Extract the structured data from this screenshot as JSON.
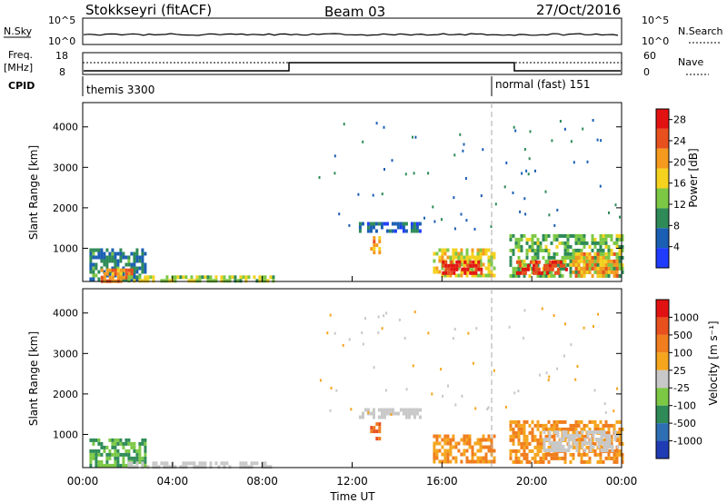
{
  "header": {
    "station": "Stokkseyri (fitACF)",
    "beam": "Beam 03",
    "date": "27/Oct/2016"
  },
  "top_panels": {
    "nsky_label": "N.Sky",
    "nsky_ticks": [
      "10^5",
      "10^0"
    ],
    "nsearch_label": "N.Search",
    "nsearch_ticks": [
      "10^5",
      "10^0"
    ],
    "freq_label": "Freq.",
    "freq_unit": "[MHz]",
    "freq_ticks": [
      "18",
      "8"
    ],
    "nave_label": "Nave",
    "nave_ticks": [
      "60",
      "0"
    ],
    "cpid_label": "CPID",
    "cpid_segments": [
      {
        "label": "themis 3300",
        "start_hour": 0,
        "end_hour": 18
      },
      {
        "label": "normal (fast) 151",
        "start_hour": 18,
        "end_hour": 24
      }
    ]
  },
  "chart_data": [
    {
      "type": "heatmap",
      "title": "",
      "xlabel": "",
      "ylabel": "Slant Range [km]",
      "xlim": [
        0,
        24
      ],
      "ylim": [
        180,
        4600
      ],
      "yticks": [
        1000,
        2000,
        3000,
        4000
      ],
      "colorbar": {
        "label": "Power [dB]",
        "ticks": [
          "4",
          "8",
          "12",
          "16",
          "20",
          "24",
          "28"
        ],
        "range": [
          0,
          30
        ],
        "colors": [
          "#1f3cff",
          "#1b5fb4",
          "#2e8b57",
          "#7cc845",
          "#f5d21e",
          "#f59a1e",
          "#e8501e",
          "#e31212"
        ]
      },
      "echo_regions": [
        {
          "t0": 0.3,
          "t1": 2.8,
          "r0": 200,
          "r1": 1000,
          "value": 8
        },
        {
          "t0": 0.8,
          "t1": 2.2,
          "r0": 200,
          "r1": 500,
          "value": 22
        },
        {
          "t0": 2.0,
          "t1": 8.5,
          "r0": 180,
          "r1": 330,
          "value": 14
        },
        {
          "t0": 12.3,
          "t1": 15.0,
          "r0": 1400,
          "r1": 1650,
          "value": 6
        },
        {
          "t0": 12.8,
          "t1": 13.2,
          "r0": 900,
          "r1": 1300,
          "value": 20
        },
        {
          "t0": 15.6,
          "t1": 18.3,
          "r0": 300,
          "r1": 1000,
          "value": 16
        },
        {
          "t0": 16.0,
          "t1": 17.8,
          "r0": 380,
          "r1": 700,
          "value": 28
        },
        {
          "t0": 19.0,
          "t1": 24.0,
          "r0": 300,
          "r1": 1350,
          "value": 12
        },
        {
          "t0": 19.3,
          "t1": 21.5,
          "r0": 400,
          "r1": 700,
          "value": 26
        },
        {
          "t0": 21.8,
          "t1": 23.8,
          "r0": 350,
          "r1": 900,
          "value": 20
        }
      ]
    },
    {
      "type": "heatmap",
      "title": "",
      "xlabel": "Time UT",
      "ylabel": "Slant Range [km]",
      "xlim": [
        0,
        24
      ],
      "ylim": [
        180,
        4600
      ],
      "xticks": [
        "00:00",
        "04:00",
        "08:00",
        "12:00",
        "16:00",
        "20:00",
        "00:00"
      ],
      "yticks": [
        1000,
        2000,
        3000,
        4000
      ],
      "colorbar": {
        "label": "Velocity [m s⁻¹]",
        "ticks": [
          "1000",
          "500",
          "100",
          "25",
          "-25",
          "-100",
          "-500",
          "-1000"
        ],
        "colors": [
          "#1f3cb4",
          "#2e6fb4",
          "#2e8b57",
          "#7cc845",
          "#c8c8c8",
          "#f5a51e",
          "#f07d1e",
          "#e8501e",
          "#e31212"
        ]
      },
      "echo_regions": [
        {
          "t0": 0.3,
          "t1": 2.8,
          "r0": 200,
          "r1": 900,
          "value": 100
        },
        {
          "t0": 2.0,
          "t1": 8.5,
          "r0": 180,
          "r1": 330,
          "value": 0
        },
        {
          "t0": 12.3,
          "t1": 15.0,
          "r0": 1400,
          "r1": 1650,
          "value": 0
        },
        {
          "t0": 12.8,
          "t1": 13.2,
          "r0": 900,
          "r1": 1300,
          "value": -500
        },
        {
          "t0": 15.6,
          "t1": 18.3,
          "r0": 300,
          "r1": 1000,
          "value": -100
        },
        {
          "t0": 19.0,
          "t1": 24.0,
          "r0": 300,
          "r1": 1350,
          "value": -100
        },
        {
          "t0": 20.5,
          "t1": 23.8,
          "r0": 600,
          "r1": 1100,
          "value": 0
        }
      ]
    }
  ],
  "colors": {
    "axis": "#000000",
    "divider": "#aaaaaa"
  }
}
